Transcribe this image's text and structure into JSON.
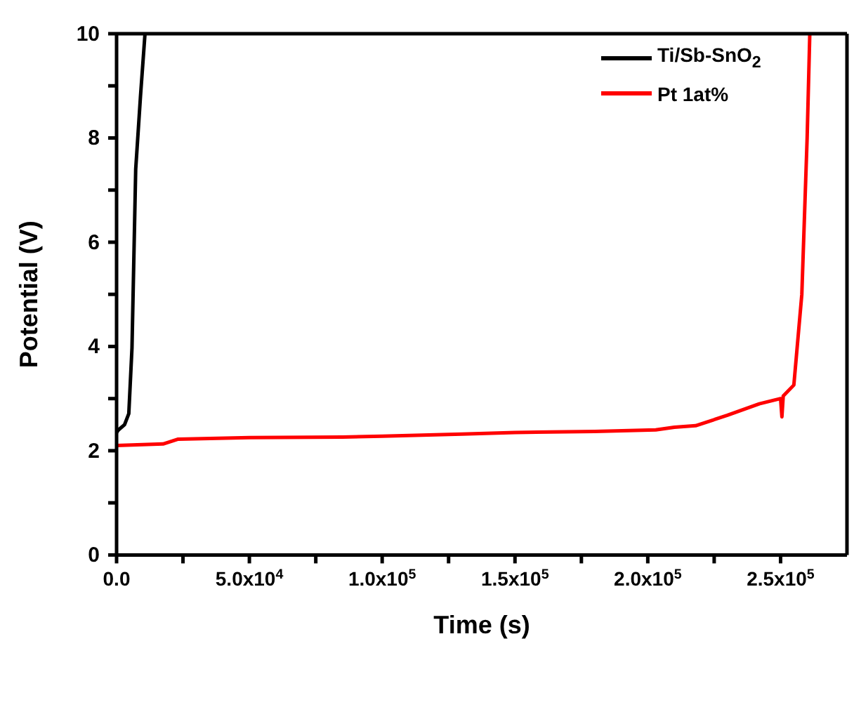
{
  "chart_data": {
    "type": "line",
    "xlabel": "Time (s)",
    "ylabel": "Potential (V)",
    "xlim": [
      0,
      275000
    ],
    "ylim": [
      0,
      10
    ],
    "xticks": [
      {
        "value": 0,
        "label": "0.0"
      },
      {
        "value": 25000,
        "label": null
      },
      {
        "value": 50000,
        "label": "5.0x10$^{4}$"
      },
      {
        "value": 75000,
        "label": null
      },
      {
        "value": 100000,
        "label": "1.0x10$^{5}$"
      },
      {
        "value": 125000,
        "label": null
      },
      {
        "value": 150000,
        "label": "1.5x10$^{5}$"
      },
      {
        "value": 175000,
        "label": null
      },
      {
        "value": 200000,
        "label": "2.0x10$^{5}$"
      },
      {
        "value": 225000,
        "label": null
      },
      {
        "value": 250000,
        "label": "2.5x10$^{5}$"
      }
    ],
    "yticks": [
      0,
      {
        "value": 1,
        "label": null
      },
      2,
      {
        "value": 3,
        "label": null
      },
      4,
      {
        "value": 5,
        "label": null
      },
      6,
      {
        "value": 7,
        "label": null
      },
      8,
      {
        "value": 9,
        "label": null
      },
      10
    ],
    "legend": "top right",
    "marker": "none",
    "line_style": "solid",
    "series": [
      {
        "name": "Ti/Sb-SnO$_{2}$",
        "color": "#000000",
        "x": [
          0,
          700,
          3000,
          4600,
          5800,
          7200,
          9000,
          10700
        ],
        "values": [
          2.35,
          2.4,
          2.5,
          2.71,
          3.97,
          7.4,
          8.8,
          10
        ]
      },
      {
        "name": "Pt 1at%",
        "color": "#ff0000",
        "x": [
          0,
          17500,
          23000,
          50000,
          85000,
          100000,
          130000,
          150000,
          180000,
          203000,
          210000,
          218000,
          230000,
          242000,
          250000,
          250500,
          251000,
          255000,
          258000,
          260000,
          261000
        ],
        "values": [
          2.1,
          2.13,
          2.22,
          2.25,
          2.26,
          2.28,
          2.32,
          2.35,
          2.37,
          2.4,
          2.45,
          2.48,
          2.68,
          2.9,
          3.0,
          2.65,
          3.05,
          3.26,
          5,
          8,
          10
        ]
      }
    ]
  }
}
